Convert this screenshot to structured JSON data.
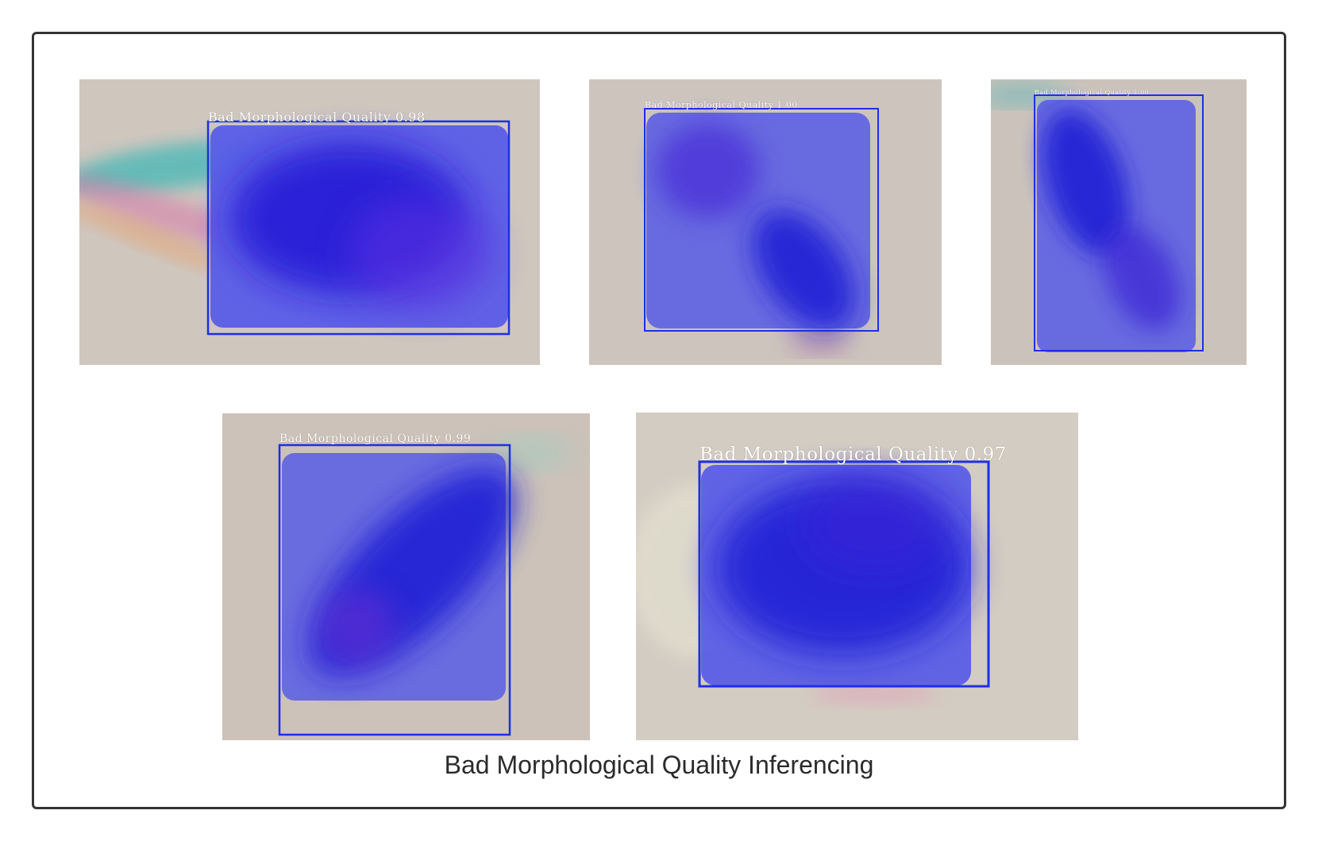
{
  "caption": "Bad Morphological Quality Inferencing",
  "colors": {
    "box_stroke": "#1f2ee6",
    "mask_fill": "#4a4fe8",
    "cell_dark": "#1a1ad0",
    "background_tissue": "#cdc4bc",
    "frame_border": "#333333"
  },
  "detections": [
    {
      "label": "Bad Morphological Quality 0.98"
    },
    {
      "label": "Bad Morphological Quality 1.00"
    },
    {
      "label": "Bad Morphological Quality 1.00"
    },
    {
      "label": "Bad Morphological Quality 0.99"
    },
    {
      "label": "Bad Morphological Quality 0.97"
    }
  ]
}
